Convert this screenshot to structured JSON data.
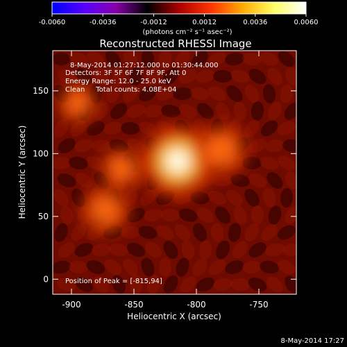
{
  "chart_data": {
    "type": "heatmap",
    "title": "Reconstructed RHESSI Image",
    "xlabel": "Heliocentric X (arcsec)",
    "ylabel": "Heliocentric Y (arcsec)",
    "xlim": [
      -915,
      -720
    ],
    "ylim": [
      -12,
      182
    ],
    "xticks": [
      -900,
      -850,
      -800,
      -750
    ],
    "yticks": [
      0,
      50,
      100,
      150
    ],
    "colorbar": {
      "label": "(photons cm⁻² s⁻¹ asec⁻²)",
      "range": [
        -0.006,
        0.006
      ],
      "ticks": [
        "-0.0060",
        "-0.0036",
        "-0.0012",
        "0.0012",
        "0.0036",
        "0.0060"
      ],
      "colors": [
        "#0000ff",
        "#5500ff",
        "#8800aa",
        "#000000",
        "#aa0000",
        "#ff3300",
        "#ffaa00",
        "#ffff66",
        "#ffffff"
      ]
    },
    "annotations": [
      "8-May-2014 01:27:12.000 to 01:30:44.000",
      "Detectors: 3F 5F 6F 7F 8F 9F, Att 0",
      "Energy Range: 12.0 - 25.0 keV",
      "Clean     Total counts: 4.08E+04"
    ],
    "peak_label": "Position of Peak = [-815,94]",
    "sources": [
      {
        "x": -815,
        "y": 94,
        "peak": 1.0
      },
      {
        "x": -780,
        "y": 103,
        "peak": 0.55
      },
      {
        "x": -873,
        "y": 55,
        "peak": 0.45
      },
      {
        "x": -895,
        "y": 140,
        "peak": 0.25
      },
      {
        "x": -860,
        "y": 88,
        "peak": 0.3
      }
    ]
  },
  "footer": {
    "timestamp": "8-May-2014 17:27"
  }
}
